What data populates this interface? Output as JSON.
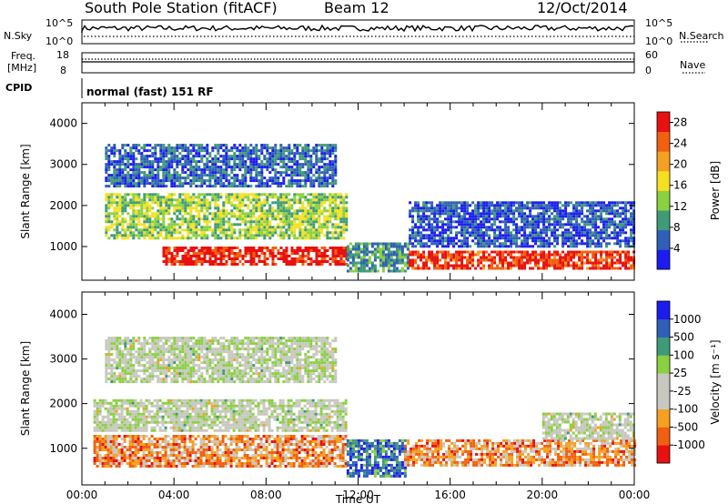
{
  "header": {
    "station": "South Pole Station (fitACF)",
    "beam": "Beam 12",
    "date": "12/Oct/2014"
  },
  "top_panels": {
    "nsky_label": "N.Sky",
    "nsearch_label": "N.Search",
    "noise_tick_high": "10^5",
    "noise_tick_low": "10^0",
    "freq_label": "Freq.",
    "freq_unit": "[MHz]",
    "freq_tick_high": "18",
    "freq_tick_low": "8",
    "nave_label": "Nave",
    "nave_tick_high": "60",
    "nave_tick_low": "0",
    "cpid_label": "CPID",
    "cpid_value": "normal (fast) 151 RF"
  },
  "chart_data": [
    {
      "type": "heatmap",
      "title": "",
      "xlabel": "",
      "ylabel": "Slant Range [km]",
      "yticks": [
        "1000",
        "2000",
        "3000",
        "4000"
      ],
      "ylim": [
        180,
        4500
      ],
      "xlim": [
        0,
        24
      ],
      "colorbar_label": "Power [dB]",
      "colorbar_ticks": [
        "4",
        "8",
        "12",
        "16",
        "20",
        "24",
        "28"
      ],
      "colorbar_range": [
        0,
        30
      ],
      "colors": [
        "#1c1cf0",
        "#2f5fb8",
        "#3f9a78",
        "#8ad040",
        "#f5e020",
        "#f5a020",
        "#f06010",
        "#e81010"
      ],
      "regions": [
        {
          "t0": 1.0,
          "t1": 11.5,
          "r0": 1200,
          "r1": 2300,
          "level": 0.45
        },
        {
          "t0": 3.5,
          "t1": 11.5,
          "r0": 600,
          "r1": 1000,
          "level": 0.95
        },
        {
          "t0": 11.5,
          "t1": 14.2,
          "r0": 400,
          "r1": 1100,
          "level": 0.3
        },
        {
          "t0": 14.2,
          "t1": 24.0,
          "r0": 500,
          "r1": 900,
          "level": 0.9
        },
        {
          "t0": 14.2,
          "t1": 24.0,
          "r0": 1000,
          "r1": 2100,
          "level": 0.15
        },
        {
          "t0": 1.0,
          "t1": 11.0,
          "r0": 2500,
          "r1": 3500,
          "level": 0.2
        }
      ]
    },
    {
      "type": "heatmap",
      "title": "",
      "xlabel": "Time UT",
      "ylabel": "Slant Range [km]",
      "xticks": [
        "00:00",
        "04:00",
        "08:00",
        "12:00",
        "16:00",
        "20:00",
        "00:00"
      ],
      "yticks": [
        "1000",
        "2000",
        "3000",
        "4000"
      ],
      "ylim": [
        180,
        4500
      ],
      "xlim": [
        0,
        24
      ],
      "colorbar_label": "Velocity [m s⁻¹]",
      "colorbar_ticks": [
        "1000",
        "500",
        "100",
        "25",
        "-25",
        "-100",
        "-500",
        "-1000"
      ],
      "colorbar_range": [
        -1000,
        1000
      ],
      "colors": [
        "#e81010",
        "#f06010",
        "#f5a020",
        "#c8c8c0",
        "#c8c8c0",
        "#8ad040",
        "#3f9a78",
        "#2f5fb8",
        "#1c1cf0"
      ],
      "regions": [
        {
          "t0": 0.5,
          "t1": 11.5,
          "r0": 1400,
          "r1": 2100,
          "level": 0.5
        },
        {
          "t0": 0.5,
          "t1": 11.5,
          "r0": 600,
          "r1": 1300,
          "level": 0.25
        },
        {
          "t0": 11.5,
          "t1": 14.0,
          "r0": 400,
          "r1": 1200,
          "level": 0.8
        },
        {
          "t0": 14.0,
          "t1": 24.0,
          "r0": 600,
          "r1": 1200,
          "level": 0.25
        },
        {
          "t0": 20.0,
          "t1": 24.0,
          "r0": 1200,
          "r1": 1800,
          "level": 0.5
        },
        {
          "t0": 1.0,
          "t1": 11.0,
          "r0": 2500,
          "r1": 3500,
          "level": 0.5
        }
      ]
    }
  ]
}
